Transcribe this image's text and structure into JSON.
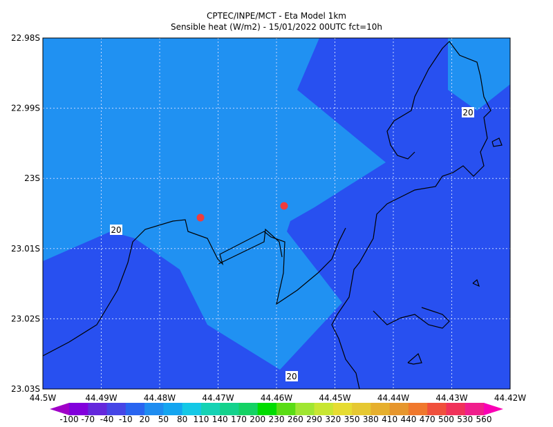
{
  "header": {
    "line1": "CPTEC/INPE/MCT -  Eta Model 1km",
    "line2": "Sensible heat (W/m2) - 15/01/2022 00UTC fct=10h"
  },
  "map": {
    "lat_labels": [
      "22.98S",
      "22.99S",
      "23S",
      "23.01S",
      "23.02S",
      "23.03S"
    ],
    "lon_labels": [
      "44.5W",
      "44.49W",
      "44.48W",
      "44.47W",
      "44.46W",
      "44.45W",
      "44.44W",
      "44.43W",
      "44.42W"
    ],
    "contour_labels": [
      "20",
      "20",
      "20"
    ]
  },
  "colorbar": {
    "labels": [
      "-100",
      "-70",
      "-40",
      "-10",
      "20",
      "50",
      "80",
      "110",
      "140",
      "170",
      "200",
      "230",
      "260",
      "290",
      "320",
      "350",
      "380",
      "410",
      "440",
      "470",
      "500",
      "530",
      "560"
    ],
    "colors": [
      "#a000c8",
      "#8200dc",
      "#6428dc",
      "#4646e6",
      "#2864f0",
      "#1e8cf0",
      "#14a5f0",
      "#14c8e6",
      "#14d2b4",
      "#14d28c",
      "#14d264",
      "#00dc00",
      "#5adc14",
      "#a0e632",
      "#c8e632",
      "#e6dc32",
      "#e6c832",
      "#e6af2d",
      "#e6962d",
      "#f0782d",
      "#f0503c",
      "#f0325a",
      "#f01e8c",
      "#fa00b4"
    ]
  }
}
